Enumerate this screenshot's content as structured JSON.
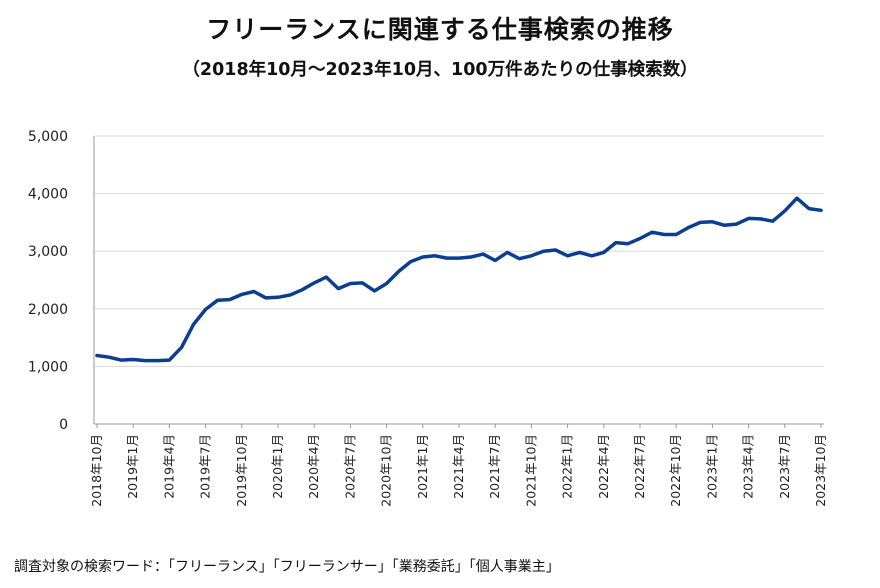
{
  "title": "フリーランスに関連する仕事検索の推移",
  "subtitle": "（2018年10月～2023年10月、100万件あたりの仕事検索数）",
  "note": "調査対象の検索ワード：「フリーランス」「フリーランサー」「業務委託」「個人事業主」",
  "colors": {
    "line": "#0b3d91",
    "grid": "#d9d9d9",
    "axis": "#999999"
  },
  "chart_data": {
    "type": "line",
    "title": "フリーランスに関連する仕事検索の推移",
    "subtitle": "（2018年10月～2023年10月、100万件あたりの仕事検索数）",
    "xlabel": "",
    "ylabel": "",
    "ylim": [
      0,
      5000
    ],
    "yticks": [
      0,
      1000,
      2000,
      3000,
      4000,
      5000
    ],
    "ytick_labels": [
      "0",
      "1,000",
      "2,000",
      "3,000",
      "4,000",
      "5,000"
    ],
    "x": [
      "2018年10月",
      "2018年11月",
      "2018年12月",
      "2019年1月",
      "2019年2月",
      "2019年3月",
      "2019年4月",
      "2019年5月",
      "2019年6月",
      "2019年7月",
      "2019年8月",
      "2019年9月",
      "2019年10月",
      "2019年11月",
      "2019年12月",
      "2020年1月",
      "2020年2月",
      "2020年3月",
      "2020年4月",
      "2020年5月",
      "2020年6月",
      "2020年7月",
      "2020年8月",
      "2020年9月",
      "2020年10月",
      "2020年11月",
      "2020年12月",
      "2021年1月",
      "2021年2月",
      "2021年3月",
      "2021年4月",
      "2021年5月",
      "2021年6月",
      "2021年7月",
      "2021年8月",
      "2021年9月",
      "2021年10月",
      "2021年11月",
      "2021年12月",
      "2022年1月",
      "2022年2月",
      "2022年3月",
      "2022年4月",
      "2022年5月",
      "2022年6月",
      "2022年7月",
      "2022年8月",
      "2022年9月",
      "2022年10月",
      "2022年11月",
      "2022年12月",
      "2023年1月",
      "2023年2月",
      "2023年3月",
      "2023年4月",
      "2023年5月",
      "2023年6月",
      "2023年7月",
      "2023年8月",
      "2023年9月",
      "2023年10月"
    ],
    "xtick_labels": [
      "2018年10月",
      "2019年1月",
      "2019年4月",
      "2019年7月",
      "2019年10月",
      "2020年1月",
      "2020年4月",
      "2020年7月",
      "2020年10月",
      "2021年1月",
      "2021年4月",
      "2021年7月",
      "2021年10月",
      "2022年1月",
      "2022年4月",
      "2022年7月",
      "2022年10月",
      "2023年1月",
      "2023年4月",
      "2023年7月",
      "2023年10月"
    ],
    "series": [
      {
        "name": "仕事検索数（100万件あたり）",
        "values": [
          1190,
          1160,
          1110,
          1120,
          1100,
          1100,
          1110,
          1330,
          1730,
          1990,
          2150,
          2160,
          2250,
          2300,
          2190,
          2200,
          2240,
          2330,
          2450,
          2550,
          2350,
          2440,
          2450,
          2310,
          2440,
          2650,
          2820,
          2900,
          2920,
          2880,
          2880,
          2900,
          2950,
          2840,
          2980,
          2870,
          2920,
          3000,
          3020,
          2920,
          2980,
          2920,
          2980,
          3150,
          3130,
          3220,
          3330,
          3290,
          3290,
          3410,
          3500,
          3510,
          3450,
          3470,
          3570,
          3560,
          3520,
          3700,
          3920,
          3740,
          3710
        ]
      }
    ]
  }
}
